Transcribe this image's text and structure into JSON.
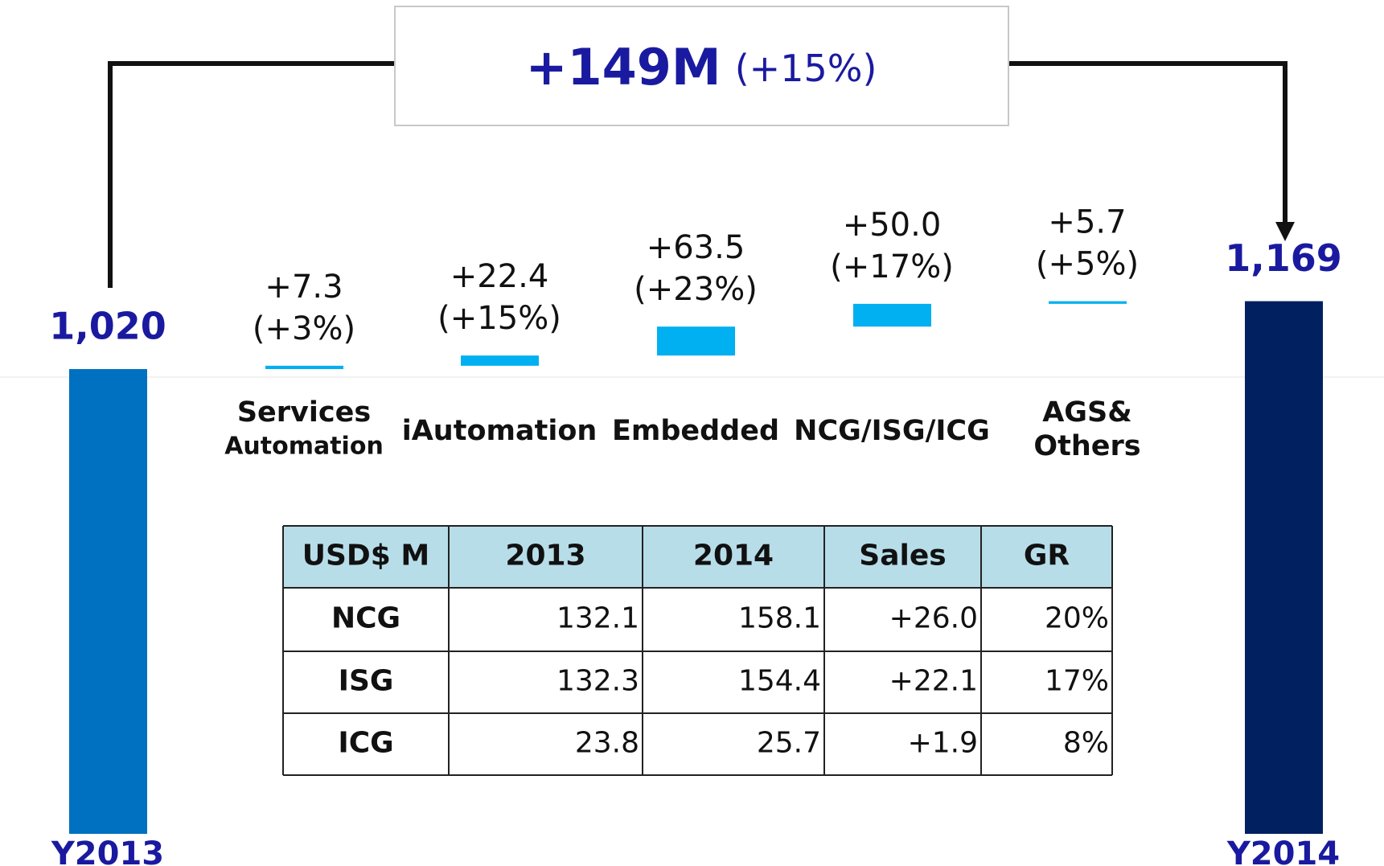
{
  "chart_data": {
    "type": "waterfall",
    "title": "+149M",
    "subtitle": "(+15%)",
    "start": {
      "label": "Y2013",
      "value": 1020,
      "value_label": "1,020",
      "color": "#0070c0"
    },
    "end": {
      "label": "Y2014",
      "value": 1169,
      "value_label": "1,169",
      "color": "#002060"
    },
    "categories": [
      [
        "Services",
        "Automation"
      ],
      [
        "iAutomation"
      ],
      [
        "Embedded"
      ],
      [
        "NCG/ISG/ICG"
      ],
      [
        "AGS&",
        "Others"
      ]
    ],
    "values": [
      7.3,
      22.4,
      63.5,
      50.0,
      5.7
    ],
    "value_labels": [
      "+7.3",
      "+22.4",
      "+63.5",
      "+50.0",
      "+5.7"
    ],
    "growth_labels": [
      "(+3%)",
      "(+15%)",
      "(+23%)",
      "(+17%)",
      "(+5%)"
    ],
    "color": "#00b0f0"
  },
  "table": {
    "header": [
      "USD$ M",
      "2013",
      "2014",
      "Sales",
      "GR"
    ],
    "rows": [
      [
        "NCG",
        "132.1",
        "158.1",
        "+26.0",
        "20%"
      ],
      [
        "ISG",
        "132.3",
        "154.4",
        "+22.1",
        "17%"
      ],
      [
        "ICG",
        "23.8",
        "25.7",
        "+1.9",
        "8%"
      ]
    ]
  }
}
